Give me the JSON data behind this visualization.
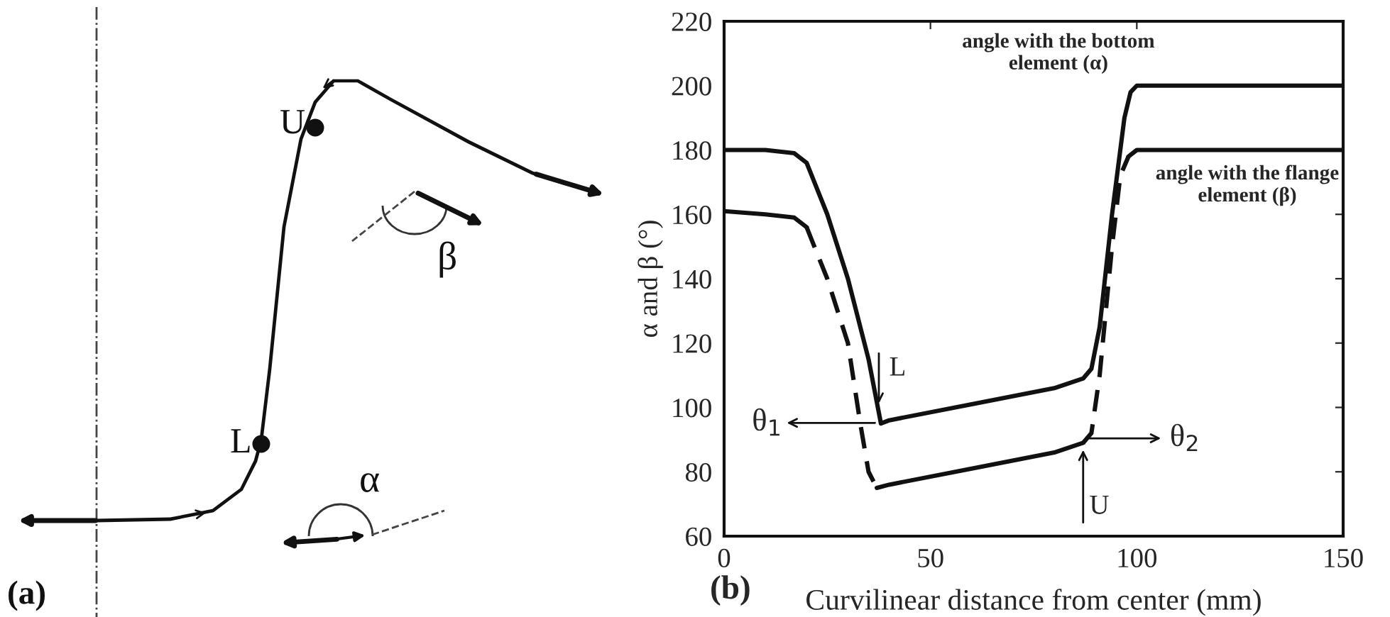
{
  "chart_data": [
    {
      "type": "other",
      "annotations": [
        "U",
        "L",
        "β",
        "α",
        "(a)"
      ]
    },
    {
      "type": "line",
      "xlabel": "Curvilinear distance from center (mm)",
      "ylabel": "α and β (°)",
      "xlim": [
        0,
        150
      ],
      "ylim": [
        60,
        220
      ],
      "xticks": [
        0,
        50,
        100,
        150
      ],
      "yticks": [
        60,
        80,
        100,
        120,
        140,
        160,
        180,
        200,
        220
      ],
      "series": [
        {
          "color": "#111111",
          "line_style": "solid",
          "x": [
            0,
            10,
            17,
            20,
            25,
            30,
            35,
            38,
            40,
            60,
            80,
            87,
            89,
            91,
            94,
            97,
            98.5,
            100,
            150
          ],
          "values": [
            180,
            180,
            179,
            176,
            160,
            140,
            115,
            95,
            96,
            101,
            106,
            109,
            112,
            125,
            160,
            190,
            198,
            200,
            200
          ]
        },
        {
          "color": "#111111",
          "line_style": "solid",
          "x": [
            0,
            10,
            17,
            20
          ],
          "values": [
            161,
            160,
            159,
            156
          ]
        },
        {
          "color": "#111111",
          "line_style": "dashed",
          "x": [
            20,
            25,
            30,
            33,
            35,
            37
          ],
          "values": [
            156,
            140,
            120,
            95,
            80,
            75
          ]
        },
        {
          "color": "#111111",
          "line_style": "solid",
          "x": [
            37,
            40,
            60,
            80,
            87
          ],
          "values": [
            75,
            76,
            81,
            86,
            89
          ]
        },
        {
          "color": "#111111",
          "line_style": "dashed",
          "x": [
            87,
            89,
            91,
            94,
            96,
            98
          ],
          "values": [
            89,
            92,
            110,
            150,
            172,
            178
          ]
        },
        {
          "color": "#111111",
          "line_style": "solid",
          "x": [
            98,
            100,
            150
          ],
          "values": [
            178,
            180,
            180
          ]
        }
      ],
      "annotations": [
        {
          "text": "L",
          "x": 37.5,
          "y": 100
        },
        {
          "text": "U",
          "x": 87,
          "y": 88
        },
        "θ$_{1}$",
        "θ$_{2}$",
        {
          "text": "angle with the bottom\nelement (α)",
          "x": 97,
          "y": 200
        },
        {
          "text": "angle with the flange\nelement (β)",
          "x": 100,
          "y": 180
        },
        "(b)"
      ]
    }
  ]
}
